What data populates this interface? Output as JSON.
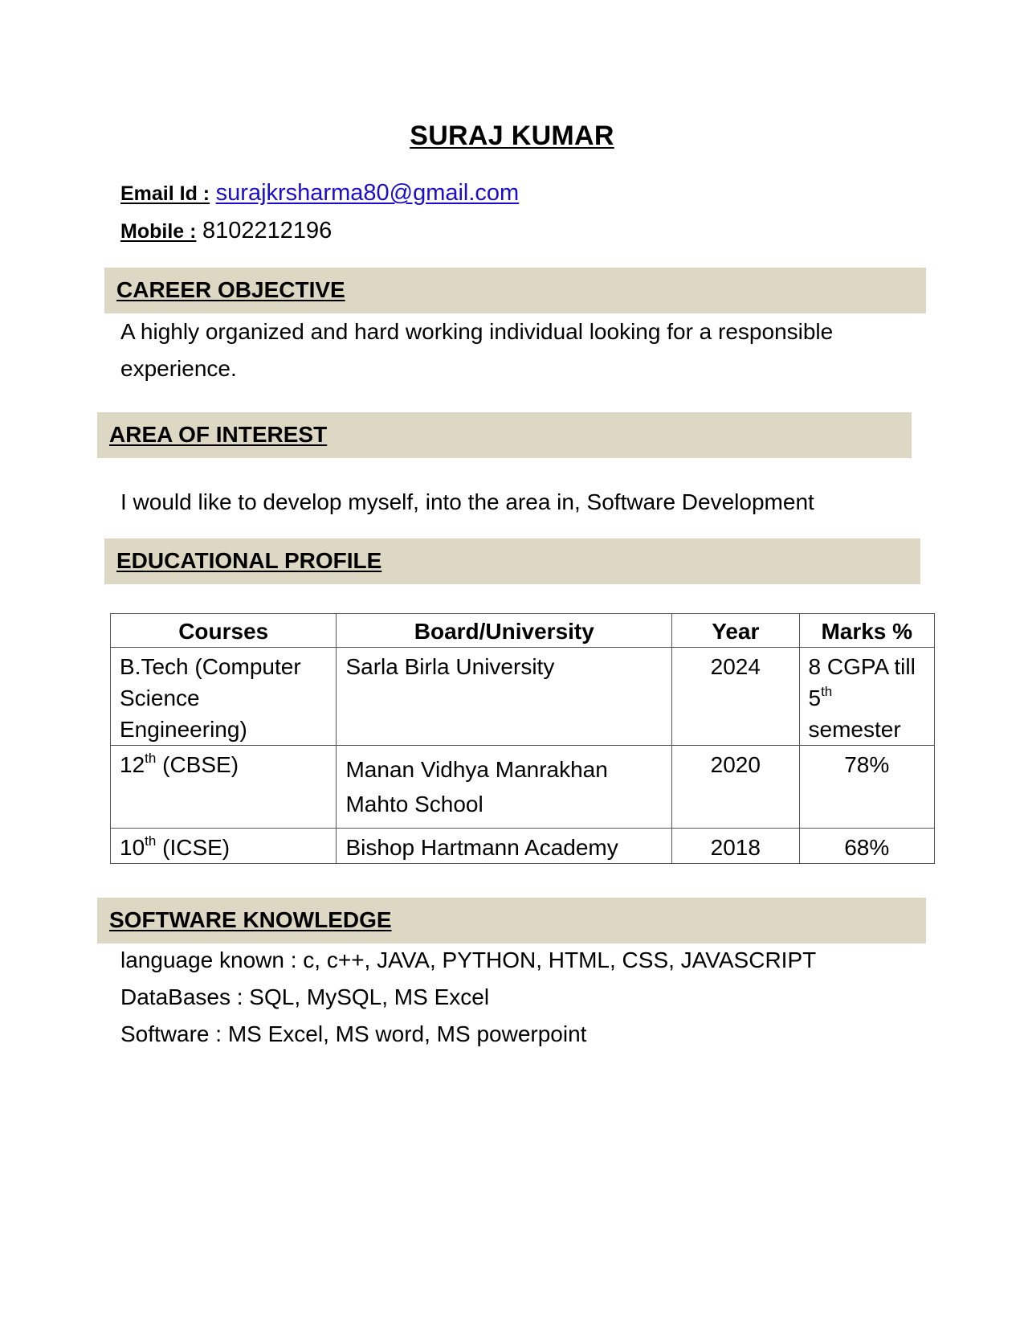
{
  "name": "SURAJ KUMAR",
  "contact": {
    "email_label": "Email Id :",
    "email": "surajkrsharma80@gmail.com",
    "mobile_label": "Mobile :",
    "mobile": "8102212196"
  },
  "sections": {
    "career_objective": {
      "title": "CAREER OBJECTIVE",
      "line1": "A highly organized and hard working individual looking for a responsible",
      "line2": "experience."
    },
    "area_of_interest": {
      "title": "AREA OF INTEREST",
      "text": "I would like to develop myself, into the area in, Software Development"
    },
    "educational_profile": {
      "title": "EDUCATIONAL PROFILE",
      "headers": [
        "Courses",
        "Board/University",
        "Year",
        "Marks %"
      ],
      "rows": [
        {
          "course_line1": "B.Tech (Computer",
          "course_line2": "Science",
          "course_line3": "Engineering)",
          "board": "Sarla Birla University",
          "year": "2024",
          "marks_line1": "8 CGPA till",
          "marks_num": "5",
          "marks_sup": "th",
          "marks_line3": "semester"
        },
        {
          "course_num": "12",
          "course_sup": "th",
          "course_rest": " (CBSE)",
          "board_line1": "Manan Vidhya Manrakhan",
          "board_line2": "Mahto School",
          "year": "2020",
          "marks": "78%"
        },
        {
          "course_num": "10",
          "course_sup": "th",
          "course_rest": " (ICSE)",
          "board": "Bishop Hartmann Academy",
          "year": "2018",
          "marks": "68%"
        }
      ]
    },
    "software_knowledge": {
      "title": "SOFTWARE KNOWLEDGE",
      "lines": [
        "language known : c, c++, JAVA, PYTHON, HTML, CSS, JAVASCRIPT",
        "DataBases : SQL, MySQL, MS Excel",
        "Software : MS Excel, MS word, MS powerpoint"
      ]
    }
  },
  "colors": {
    "band_background": "#ddd8c4",
    "link": "#1a0dcc"
  }
}
